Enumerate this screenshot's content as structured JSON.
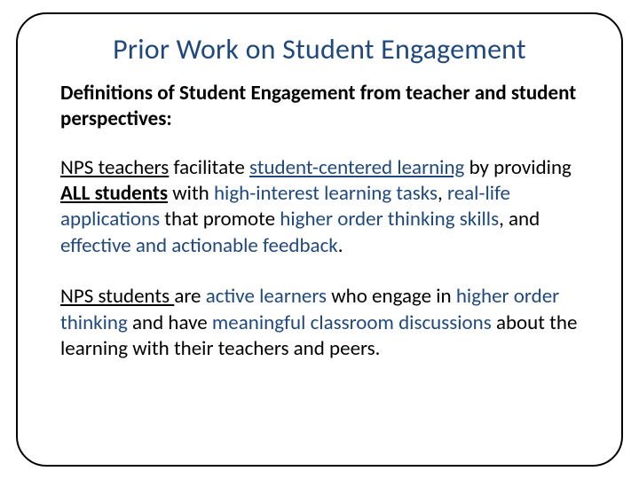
{
  "colors": {
    "accent_blue": "#1f497d",
    "text_black": "#000000",
    "background": "#ffffff",
    "border": "#000000"
  },
  "typography": {
    "font_family": "Calibri",
    "title_fontsize": 32,
    "body_fontsize": 23,
    "title_weight": 400,
    "subheading_weight": 700
  },
  "layout": {
    "slide_width": 720,
    "slide_height": 540,
    "frame_border_radius": 34,
    "frame_border_width": 2
  },
  "title": "Prior Work on Student Engagement",
  "subheading": "Definitions of Student Engagement from teacher and student perspectives:",
  "para1": {
    "s1": "NPS teachers",
    "s2": " facilitate ",
    "s3": "student-centered learning",
    "s4": " by providing ",
    "s5": "ALL students",
    "s6": " with ",
    "s7": "high-interest learning tasks",
    "s8": ", ",
    "s9": "real-life applications",
    "s10": " that promote ",
    "s11": "higher order thinking skills",
    "s12": ", and ",
    "s13": "effective and actionable feedback",
    "s14": "."
  },
  "para2": {
    "s1": "NPS students ",
    "s2": "are ",
    "s3": "active learners",
    "s4": " who engage in ",
    "s5": "higher order thinking ",
    "s6": "and have ",
    "s7": "meaningful classroom discussions",
    "s8": " about the learning with their teachers and peers."
  }
}
